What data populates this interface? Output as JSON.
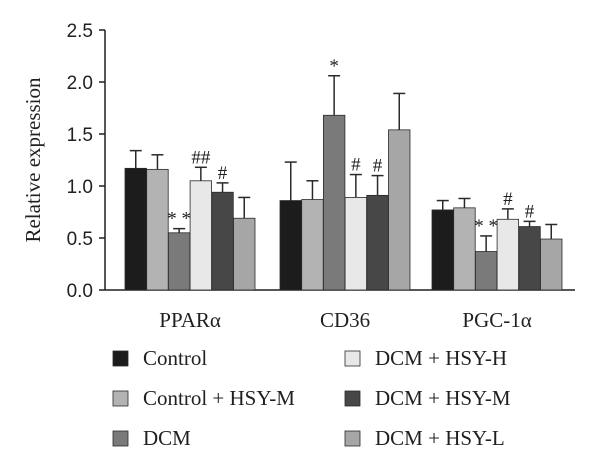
{
  "chart_data": {
    "type": "bar",
    "categories": [
      "PPARα",
      "CD36",
      "PGC-1α"
    ],
    "ylabel": "Relative expression",
    "ylim": [
      0,
      2.5
    ],
    "yticks": [
      "0.0",
      "0.5",
      "1.0",
      "1.5",
      "2.0",
      "2.5"
    ],
    "legend_position": "bottom",
    "series": [
      {
        "name": "Control",
        "color": "#1c1c1c",
        "values": [
          1.17,
          0.86,
          0.77
        ],
        "errors": [
          0.17,
          0.37,
          0.09
        ],
        "annotations": [
          "",
          "",
          ""
        ]
      },
      {
        "name": "Control + HSY-M",
        "color": "#b3b3b3",
        "values": [
          1.16,
          0.87,
          0.79
        ],
        "errors": [
          0.14,
          0.18,
          0.09
        ],
        "annotations": [
          "",
          "",
          ""
        ]
      },
      {
        "name": "DCM",
        "color": "#7a7a7a",
        "values": [
          0.55,
          1.68,
          0.37
        ],
        "errors": [
          0.04,
          0.38,
          0.15
        ],
        "annotations": [
          "* *",
          "*",
          "* *"
        ]
      },
      {
        "name": "DCM + HSY-H",
        "color": "#e8e8e8",
        "values": [
          1.05,
          0.89,
          0.68
        ],
        "errors": [
          0.13,
          0.22,
          0.1
        ],
        "annotations": [
          "##",
          "#",
          "#"
        ]
      },
      {
        "name": "DCM + HSY-M",
        "color": "#474747",
        "values": [
          0.94,
          0.91,
          0.61
        ],
        "errors": [
          0.09,
          0.19,
          0.05
        ],
        "annotations": [
          "#",
          "#",
          "#"
        ]
      },
      {
        "name": "DCM + HSY-L",
        "color": "#a6a6a6",
        "values": [
          0.69,
          1.54,
          0.49
        ],
        "errors": [
          0.2,
          0.35,
          0.14
        ],
        "annotations": [
          "",
          "",
          ""
        ]
      }
    ]
  }
}
